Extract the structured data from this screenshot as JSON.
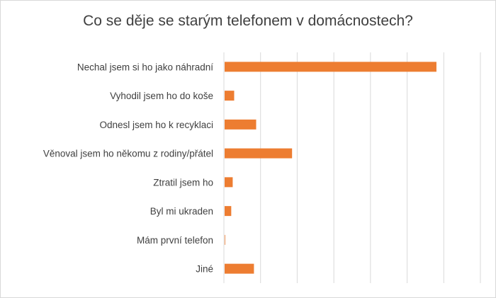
{
  "chart_data": {
    "type": "bar",
    "orientation": "horizontal",
    "title": "Co se děje se starým telefonem v domácnostech?",
    "categories": [
      "Nechal jsem si ho jako náhradní",
      "Vyhodil jsem ho do koše",
      "Odnesl jsem ho k recyklaci",
      "Věnoval jsem ho někomu z rodiny/přátel",
      "Ztratil jsem ho",
      "Byl mi ukraden",
      "Mám první telefon",
      "Jiné"
    ],
    "values": [
      58,
      2.8,
      8.8,
      18.6,
      2.4,
      2.0,
      0.3,
      8.2
    ],
    "xlim": [
      0,
      70
    ],
    "xticks": [
      0,
      10,
      20,
      30,
      40,
      50,
      60,
      70
    ],
    "xtick_labels_visible": false,
    "grid": "vertical",
    "legend": "none",
    "colors": {
      "bar": "#ED7D31",
      "grid": "#d9d9d9",
      "text": "#404040"
    }
  }
}
